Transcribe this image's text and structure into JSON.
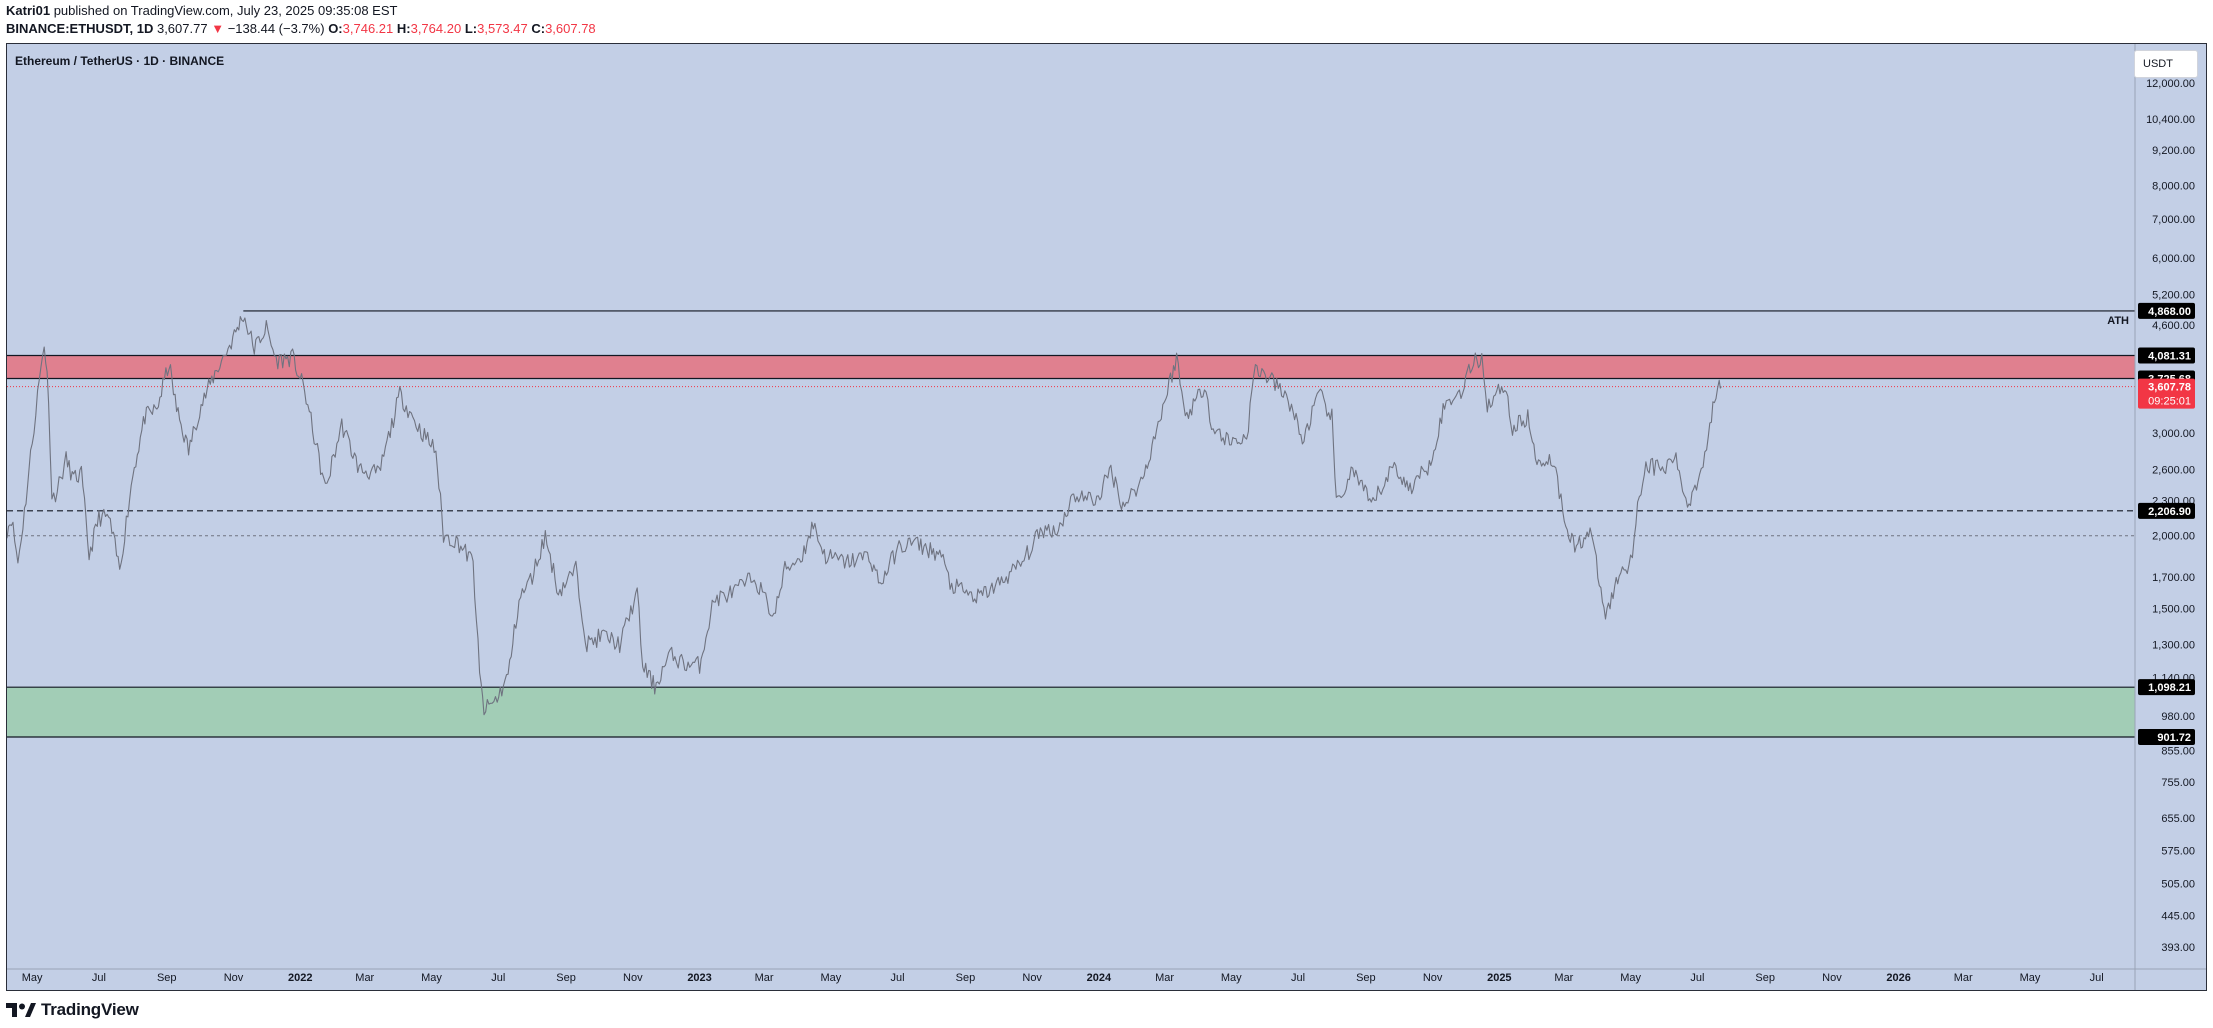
{
  "header": {
    "author": "Katri01",
    "published_text": "published on TradingView.com, July 23, 2025 09:35:08 EST",
    "symbol": "BINANCE:ETHUSDT, 1D",
    "last_price": "3,607.77",
    "change": "−138.44 (−3.7%)",
    "o_label": "O:",
    "o_value": "3,746.21",
    "h_label": "H:",
    "h_value": "3,764.20",
    "l_label": "L:",
    "l_value": "3,573.47",
    "c_label": "C:",
    "c_value": "3,607.78"
  },
  "chart_title": "Ethereum / TetherUS · 1D · BINANCE",
  "currency_button": "USDT",
  "footer_logo_text": "TradingView",
  "colors": {
    "chart_bg": "#c3cfe6",
    "resistance_zone": "#e0808f",
    "support_zone": "#a2cdb6",
    "candle": "#6f7380",
    "last_price_tag": "#f23645",
    "level_tag": "#000000"
  },
  "chart_data": {
    "type": "line",
    "title": "Ethereum / TetherUS · 1D · BINANCE",
    "y_scale": "log",
    "ylim": [
      360,
      14000
    ],
    "y_ticks": [
      {
        "value": 12000,
        "label": "12,000.00"
      },
      {
        "value": 10400,
        "label": "10,400.00"
      },
      {
        "value": 9200,
        "label": "9,200.00"
      },
      {
        "value": 8000,
        "label": "8,000.00"
      },
      {
        "value": 7000,
        "label": "7,000.00"
      },
      {
        "value": 6000,
        "label": "6,000.00"
      },
      {
        "value": 5200,
        "label": "5,200.00"
      },
      {
        "value": 4600,
        "label": "4,600.00"
      },
      {
        "value": 3000,
        "label": "3,000.00"
      },
      {
        "value": 2600,
        "label": "2,600.00"
      },
      {
        "value": 2300,
        "label": "2,300.00"
      },
      {
        "value": 2000,
        "label": "2,000.00"
      },
      {
        "value": 1700,
        "label": "1,700.00"
      },
      {
        "value": 1500,
        "label": "1,500.00"
      },
      {
        "value": 1300,
        "label": "1,300.00"
      },
      {
        "value": 1140,
        "label": "1,140.00"
      },
      {
        "value": 980,
        "label": "980.00"
      },
      {
        "value": 855,
        "label": "855.00"
      },
      {
        "value": 755,
        "label": "755.00"
      },
      {
        "value": 655,
        "label": "655.00"
      },
      {
        "value": 575,
        "label": "575.00"
      },
      {
        "value": 505,
        "label": "505.00"
      },
      {
        "value": 445,
        "label": "445.00"
      },
      {
        "value": 393,
        "label": "393.00"
      }
    ],
    "x_range": [
      "2021-04-08",
      "2026-08-05"
    ],
    "x_ticks": [
      {
        "date": "2021-05-01",
        "label": "May",
        "bold": false
      },
      {
        "date": "2021-07-01",
        "label": "Jul",
        "bold": false
      },
      {
        "date": "2021-09-01",
        "label": "Sep",
        "bold": false
      },
      {
        "date": "2021-11-01",
        "label": "Nov",
        "bold": false
      },
      {
        "date": "2022-01-01",
        "label": "2022",
        "bold": true
      },
      {
        "date": "2022-03-01",
        "label": "Mar",
        "bold": false
      },
      {
        "date": "2022-05-01",
        "label": "May",
        "bold": false
      },
      {
        "date": "2022-07-01",
        "label": "Jul",
        "bold": false
      },
      {
        "date": "2022-09-01",
        "label": "Sep",
        "bold": false
      },
      {
        "date": "2022-11-01",
        "label": "Nov",
        "bold": false
      },
      {
        "date": "2023-01-01",
        "label": "2023",
        "bold": true
      },
      {
        "date": "2023-03-01",
        "label": "Mar",
        "bold": false
      },
      {
        "date": "2023-05-01",
        "label": "May",
        "bold": false
      },
      {
        "date": "2023-07-01",
        "label": "Jul",
        "bold": false
      },
      {
        "date": "2023-09-01",
        "label": "Sep",
        "bold": false
      },
      {
        "date": "2023-11-01",
        "label": "Nov",
        "bold": false
      },
      {
        "date": "2024-01-01",
        "label": "2024",
        "bold": true
      },
      {
        "date": "2024-03-01",
        "label": "Mar",
        "bold": false
      },
      {
        "date": "2024-05-01",
        "label": "May",
        "bold": false
      },
      {
        "date": "2024-07-01",
        "label": "Jul",
        "bold": false
      },
      {
        "date": "2024-09-01",
        "label": "Sep",
        "bold": false
      },
      {
        "date": "2024-11-01",
        "label": "Nov",
        "bold": false
      },
      {
        "date": "2025-01-01",
        "label": "2025",
        "bold": true
      },
      {
        "date": "2025-03-01",
        "label": "Mar",
        "bold": false
      },
      {
        "date": "2025-05-01",
        "label": "May",
        "bold": false
      },
      {
        "date": "2025-07-01",
        "label": "Jul",
        "bold": false
      },
      {
        "date": "2025-09-01",
        "label": "Sep",
        "bold": false
      },
      {
        "date": "2025-11-01",
        "label": "Nov",
        "bold": false
      },
      {
        "date": "2026-01-01",
        "label": "2026",
        "bold": true
      },
      {
        "date": "2026-03-01",
        "label": "Mar",
        "bold": false
      },
      {
        "date": "2026-05-01",
        "label": "May",
        "bold": false
      },
      {
        "date": "2026-07-01",
        "label": "Jul",
        "bold": false
      }
    ],
    "series": [
      {
        "name": "ETHUSDT",
        "points": [
          [
            "2021-04-08",
            2050
          ],
          [
            "2021-04-12",
            2150
          ],
          [
            "2021-04-18",
            1800
          ],
          [
            "2021-04-24",
            2200
          ],
          [
            "2021-05-01",
            2900
          ],
          [
            "2021-05-06",
            3500
          ],
          [
            "2021-05-12",
            4300
          ],
          [
            "2021-05-16",
            3500
          ],
          [
            "2021-05-19",
            2300
          ],
          [
            "2021-05-24",
            2400
          ],
          [
            "2021-06-01",
            2700
          ],
          [
            "2021-06-08",
            2500
          ],
          [
            "2021-06-15",
            2550
          ],
          [
            "2021-06-22",
            1850
          ],
          [
            "2021-07-01",
            2150
          ],
          [
            "2021-07-10",
            2150
          ],
          [
            "2021-07-20",
            1750
          ],
          [
            "2021-08-01",
            2550
          ],
          [
            "2021-08-12",
            3200
          ],
          [
            "2021-08-23",
            3300
          ],
          [
            "2021-09-03",
            3950
          ],
          [
            "2021-09-10",
            3300
          ],
          [
            "2021-09-21",
            2800
          ],
          [
            "2021-10-01",
            3300
          ],
          [
            "2021-10-15",
            3800
          ],
          [
            "2021-10-30",
            4300
          ],
          [
            "2021-11-10",
            4800
          ],
          [
            "2021-11-20",
            4200
          ],
          [
            "2021-12-01",
            4550
          ],
          [
            "2021-12-10",
            4000
          ],
          [
            "2021-12-25",
            4050
          ],
          [
            "2022-01-05",
            3550
          ],
          [
            "2022-01-24",
            2400
          ],
          [
            "2022-02-08",
            3100
          ],
          [
            "2022-02-24",
            2600
          ],
          [
            "2022-03-14",
            2550
          ],
          [
            "2022-04-02",
            3500
          ],
          [
            "2022-04-20",
            3050
          ],
          [
            "2022-05-05",
            2800
          ],
          [
            "2022-05-12",
            2000
          ],
          [
            "2022-05-25",
            1950
          ],
          [
            "2022-06-08",
            1800
          ],
          [
            "2022-06-14",
            1150
          ],
          [
            "2022-06-18",
            1000
          ],
          [
            "2022-06-30",
            1050
          ],
          [
            "2022-07-10",
            1150
          ],
          [
            "2022-07-20",
            1550
          ],
          [
            "2022-08-01",
            1700
          ],
          [
            "2022-08-13",
            2000
          ],
          [
            "2022-08-25",
            1600
          ],
          [
            "2022-09-10",
            1750
          ],
          [
            "2022-09-20",
            1300
          ],
          [
            "2022-10-05",
            1350
          ],
          [
            "2022-10-20",
            1300
          ],
          [
            "2022-11-05",
            1600
          ],
          [
            "2022-11-10",
            1200
          ],
          [
            "2022-11-21",
            1100
          ],
          [
            "2022-12-05",
            1250
          ],
          [
            "2022-12-20",
            1200
          ],
          [
            "2023-01-01",
            1200
          ],
          [
            "2023-01-14",
            1550
          ],
          [
            "2023-02-01",
            1600
          ],
          [
            "2023-02-20",
            1700
          ],
          [
            "2023-03-10",
            1450
          ],
          [
            "2023-03-20",
            1750
          ],
          [
            "2023-04-05",
            1850
          ],
          [
            "2023-04-15",
            2100
          ],
          [
            "2023-04-25",
            1850
          ],
          [
            "2023-05-15",
            1800
          ],
          [
            "2023-06-05",
            1850
          ],
          [
            "2023-06-15",
            1650
          ],
          [
            "2023-07-01",
            1900
          ],
          [
            "2023-07-15",
            1950
          ],
          [
            "2023-08-10",
            1850
          ],
          [
            "2023-08-18",
            1650
          ],
          [
            "2023-09-11",
            1560
          ],
          [
            "2023-10-01",
            1650
          ],
          [
            "2023-10-23",
            1800
          ],
          [
            "2023-11-10",
            2050
          ],
          [
            "2023-11-25",
            2050
          ],
          [
            "2023-12-09",
            2350
          ],
          [
            "2023-12-30",
            2300
          ],
          [
            "2024-01-12",
            2600
          ],
          [
            "2024-01-23",
            2250
          ],
          [
            "2024-02-10",
            2500
          ],
          [
            "2024-02-27",
            3250
          ],
          [
            "2024-03-12",
            4050
          ],
          [
            "2024-03-20",
            3200
          ],
          [
            "2024-04-08",
            3650
          ],
          [
            "2024-04-13",
            3050
          ],
          [
            "2024-05-01",
            2900
          ],
          [
            "2024-05-15",
            2950
          ],
          [
            "2024-05-23",
            3900
          ],
          [
            "2024-06-10",
            3650
          ],
          [
            "2024-06-25",
            3350
          ],
          [
            "2024-07-05",
            2900
          ],
          [
            "2024-07-20",
            3500
          ],
          [
            "2024-08-01",
            3200
          ],
          [
            "2024-08-05",
            2250
          ],
          [
            "2024-08-20",
            2600
          ],
          [
            "2024-09-06",
            2250
          ],
          [
            "2024-09-27",
            2650
          ],
          [
            "2024-10-10",
            2400
          ],
          [
            "2024-10-29",
            2650
          ],
          [
            "2024-11-12",
            3350
          ],
          [
            "2024-11-27",
            3550
          ],
          [
            "2024-12-07",
            3950
          ],
          [
            "2024-12-16",
            4050
          ],
          [
            "2024-12-21",
            3350
          ],
          [
            "2025-01-06",
            3650
          ],
          [
            "2025-01-13",
            3050
          ],
          [
            "2025-01-27",
            3200
          ],
          [
            "2025-02-03",
            2700
          ],
          [
            "2025-02-20",
            2700
          ],
          [
            "2025-02-28",
            2200
          ],
          [
            "2025-03-11",
            1900
          ],
          [
            "2025-03-25",
            2050
          ],
          [
            "2025-04-08",
            1450
          ],
          [
            "2025-04-22",
            1750
          ],
          [
            "2025-05-01",
            1800
          ],
          [
            "2025-05-09",
            2350
          ],
          [
            "2025-05-15",
            2650
          ],
          [
            "2025-06-02",
            2600
          ],
          [
            "2025-06-10",
            2750
          ],
          [
            "2025-06-22",
            2250
          ],
          [
            "2025-07-03",
            2550
          ],
          [
            "2025-07-11",
            2950
          ],
          [
            "2025-07-18",
            3550
          ],
          [
            "2025-07-21",
            3750
          ],
          [
            "2025-07-23",
            3608
          ]
        ]
      }
    ],
    "levels": [
      {
        "value": 4868.0,
        "label": "4,868.00",
        "style": "solid",
        "start": "2021-11-10",
        "annotation": "ATH"
      },
      {
        "value": 4081.31,
        "label": "4,081.31",
        "style": "solid"
      },
      {
        "value": 3725.68,
        "label": "3,725.68",
        "style": "solid"
      },
      {
        "value": 2206.9,
        "label": "2,206.90",
        "style": "dashed"
      },
      {
        "value": 1098.21,
        "label": "1,098.21",
        "style": "solid"
      },
      {
        "value": 901.72,
        "label": "901.72",
        "style": "solid"
      }
    ],
    "zones": [
      {
        "name": "resistance",
        "from": 3725.68,
        "to": 4081.31
      },
      {
        "name": "support",
        "from": 901.72,
        "to": 1098.21
      }
    ],
    "last_price": {
      "value": 3607.78,
      "label": "3,607.78",
      "countdown": "09:25:01"
    },
    "dotted_level": 2000,
    "grid": false,
    "legend": "none"
  }
}
